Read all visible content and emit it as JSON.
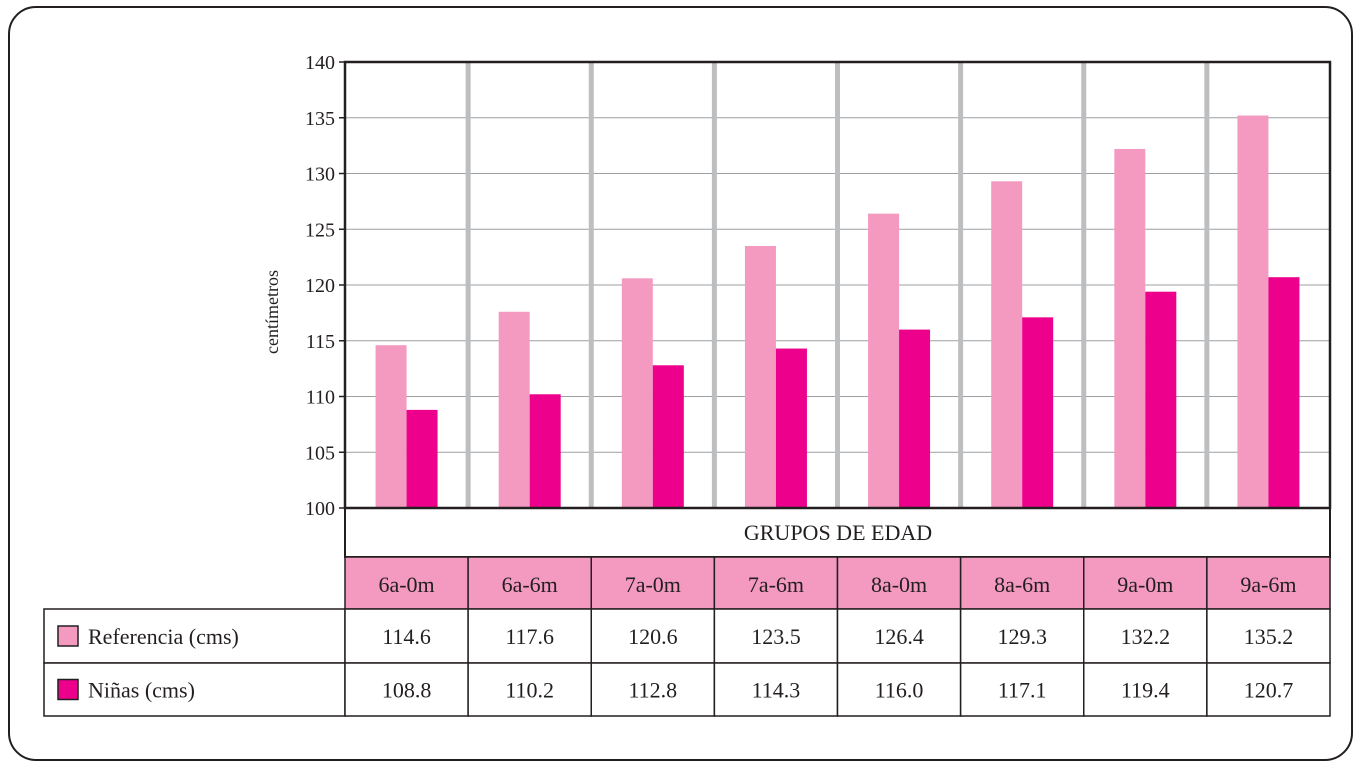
{
  "chart_data": {
    "type": "bar",
    "title": "",
    "xlabel": "GRUPOS DE EDAD",
    "ylabel": "centímetros",
    "ylim": [
      100,
      140
    ],
    "yticks": [
      100,
      105,
      110,
      115,
      120,
      125,
      130,
      135,
      140
    ],
    "categories": [
      "6a-0m",
      "6a-6m",
      "7a-0m",
      "7a-6m",
      "8a-0m",
      "8a-6m",
      "9a-0m",
      "9a-6m"
    ],
    "series": [
      {
        "name": "Referencia (cms)",
        "color": "#f49ac1",
        "values": [
          114.6,
          117.6,
          120.6,
          123.5,
          126.4,
          129.3,
          132.2,
          135.2
        ]
      },
      {
        "name": "Niñas (cms)",
        "color": "#ec008c",
        "values": [
          108.8,
          110.2,
          112.8,
          114.3,
          116.0,
          117.1,
          119.4,
          120.7
        ]
      }
    ],
    "grid": true,
    "data_table": true,
    "colors": {
      "header_cell": "#f49ac1",
      "separator": "#bcbec0",
      "grid": "#9d9fa2",
      "border": "#231f20"
    }
  }
}
